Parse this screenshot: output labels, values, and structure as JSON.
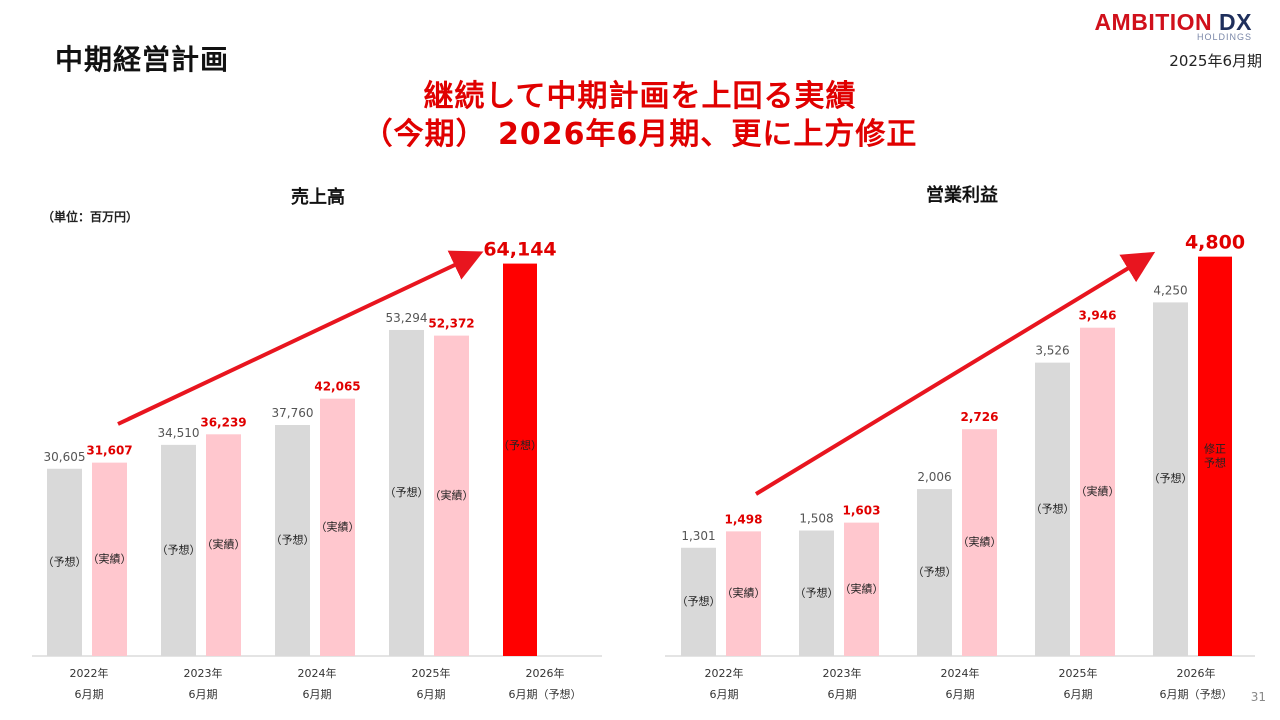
{
  "page": {
    "title": "中期経営計画",
    "logo_main": "AMBITION",
    "logo_accent": "DX",
    "logo_sub": "HOLDINGS",
    "fiscal_label": "2025年6月期",
    "headline_line1": "継続して中期計画を上回る実績",
    "headline_line2": "（今期） 2026年6月期、更に上方修正",
    "unit_note": "（単位：百万円）",
    "page_number": "31"
  },
  "colors": {
    "plan": "#d9d9d9",
    "actual": "#ffc7ce",
    "forecast": "#ff0000",
    "accent": "#e00000"
  },
  "chart_data": [
    {
      "type": "bar",
      "title": "売上高",
      "categories": [
        [
          "2022年",
          "6月期"
        ],
        [
          "2023年",
          "6月期"
        ],
        [
          "2024年",
          "6月期"
        ],
        [
          "2025年",
          "6月期"
        ],
        [
          "2026年",
          "6月期（予想）"
        ]
      ],
      "ylim": [
        0,
        68000
      ],
      "series": [
        {
          "role": "plan",
          "inner_label": "（予想）",
          "values": [
            30605,
            34510,
            37760,
            53294,
            null
          ],
          "labels": [
            "30,605",
            "34,510",
            "37,760",
            "53,294",
            null
          ]
        },
        {
          "role": "actual",
          "inner_label": "（実績）",
          "values": [
            31607,
            36239,
            42065,
            52372,
            null
          ],
          "labels": [
            "31,607",
            "36,239",
            "42,065",
            "52,372",
            null
          ]
        },
        {
          "role": "forecast",
          "inner_label": "（予想）",
          "values": [
            null,
            null,
            null,
            null,
            64144
          ],
          "labels": [
            null,
            null,
            null,
            null,
            "64,144"
          ]
        }
      ],
      "grid": false,
      "trend_arrow": true
    },
    {
      "type": "bar",
      "title": "営業利益",
      "categories": [
        [
          "2022年",
          "6月期"
        ],
        [
          "2023年",
          "6月期"
        ],
        [
          "2024年",
          "6月期"
        ],
        [
          "2025年",
          "6月期"
        ],
        [
          "2026年",
          "6月期（予想）"
        ]
      ],
      "ylim": [
        0,
        5000
      ],
      "series": [
        {
          "role": "plan",
          "inner_label": "（予想）",
          "values": [
            1301,
            1508,
            2006,
            3526,
            4250
          ],
          "labels": [
            "1,301",
            "1,508",
            "2,006",
            "3,526",
            "4,250"
          ]
        },
        {
          "role": "actual",
          "inner_label": "（実績）",
          "values": [
            1498,
            1603,
            2726,
            3946,
            null
          ],
          "labels": [
            "1,498",
            "1,603",
            "2,726",
            "3,946",
            null
          ]
        },
        {
          "role": "forecast",
          "inner_label": "修正予想",
          "values": [
            null,
            null,
            null,
            null,
            4800
          ],
          "labels": [
            null,
            null,
            null,
            null,
            "4,800"
          ]
        }
      ],
      "grid": false,
      "trend_arrow": true
    }
  ]
}
